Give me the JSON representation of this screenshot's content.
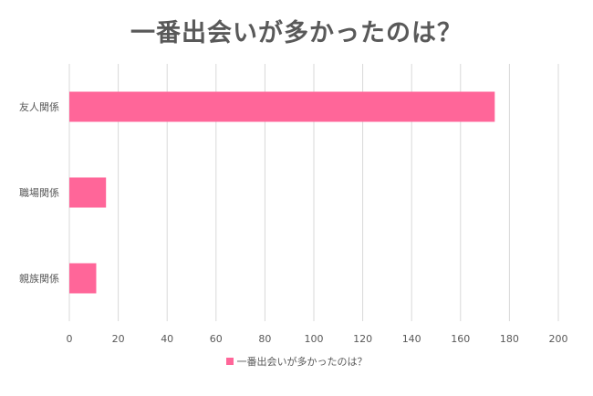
{
  "chart_data": {
    "type": "bar",
    "orientation": "horizontal",
    "title": "一番出会いが多かったのは？",
    "categories": [
      "友人関係",
      "職場関係",
      "親族関係"
    ],
    "series": [
      {
        "name": "一番出会いが多かったのは？",
        "values": [
          174,
          15,
          11
        ]
      }
    ],
    "xlim": [
      0,
      200
    ],
    "xticks": [
      0,
      20,
      40,
      60,
      80,
      100,
      120,
      140,
      160,
      180,
      200
    ],
    "grid": true,
    "legend": "bottom",
    "colors": {
      "bar": "#ff6699",
      "grid": "#d9d9d9",
      "text": "#595959"
    }
  }
}
